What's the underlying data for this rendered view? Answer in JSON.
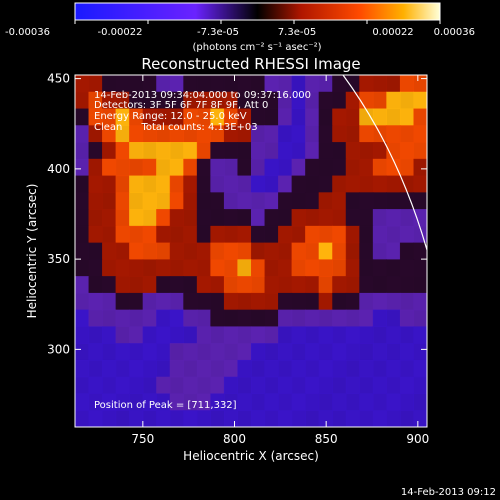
{
  "chart_data": {
    "type": "heatmap",
    "title": "Reconstructed RHESSI Image",
    "xlabel": "Heliocentric X (arcsec)",
    "ylabel": "Heliocentric Y (arcsec)",
    "xlim": [
      713,
      905
    ],
    "ylim": [
      257,
      452
    ],
    "x_ticks": [
      750,
      800,
      850,
      900
    ],
    "y_ticks": [
      300,
      350,
      400,
      450
    ],
    "colorbar": {
      "unit_label": "(photons cm⁻² s⁻¹ asec⁻²)",
      "ticks": [
        "-0.00036",
        "-0.00022",
        "-7.3e-05",
        "7.3e-05",
        "0.00022",
        "0.00036"
      ],
      "range": [
        -0.00036,
        0.00036
      ]
    },
    "annotations": [
      "14-Feb-2013 09:34:04.000 to 09:37:16.000",
      "Detectors: 3F 5F 6F 7F 8F 9F, Att 0",
      "Energy Range: 12.0 - 25.0 keV",
      "Clean      Total counts: 4.13E+03"
    ],
    "peak_label": "Position of Peak = [711,332]",
    "timestamp": "14-Feb-2013 09:12",
    "grid": [
      "33222211222222110112233344",
      "34332222333322210122344555",
      "24454333445432210123355554",
      "13454444444331100123344444",
      "12345555542221100122333444",
      "13444455421121001222334443",
      "23345554321110012223333333",
      "23345554322111122233222222",
      "23345543322221223333221111",
      "23344433323332233444321111",
      "22334443334443334454321122",
      "22333333334454334444322222",
      "12233322233444333343322222",
      "11122111222333322232211111",
      "01111100112222211111110011",
      "00011000011111100000000000",
      "00000001111110000000000000",
      "00000001111100000000000000",
      "00000011111000000000000000",
      "00000001110000000000000000",
      "00000000000000000000000000"
    ]
  }
}
